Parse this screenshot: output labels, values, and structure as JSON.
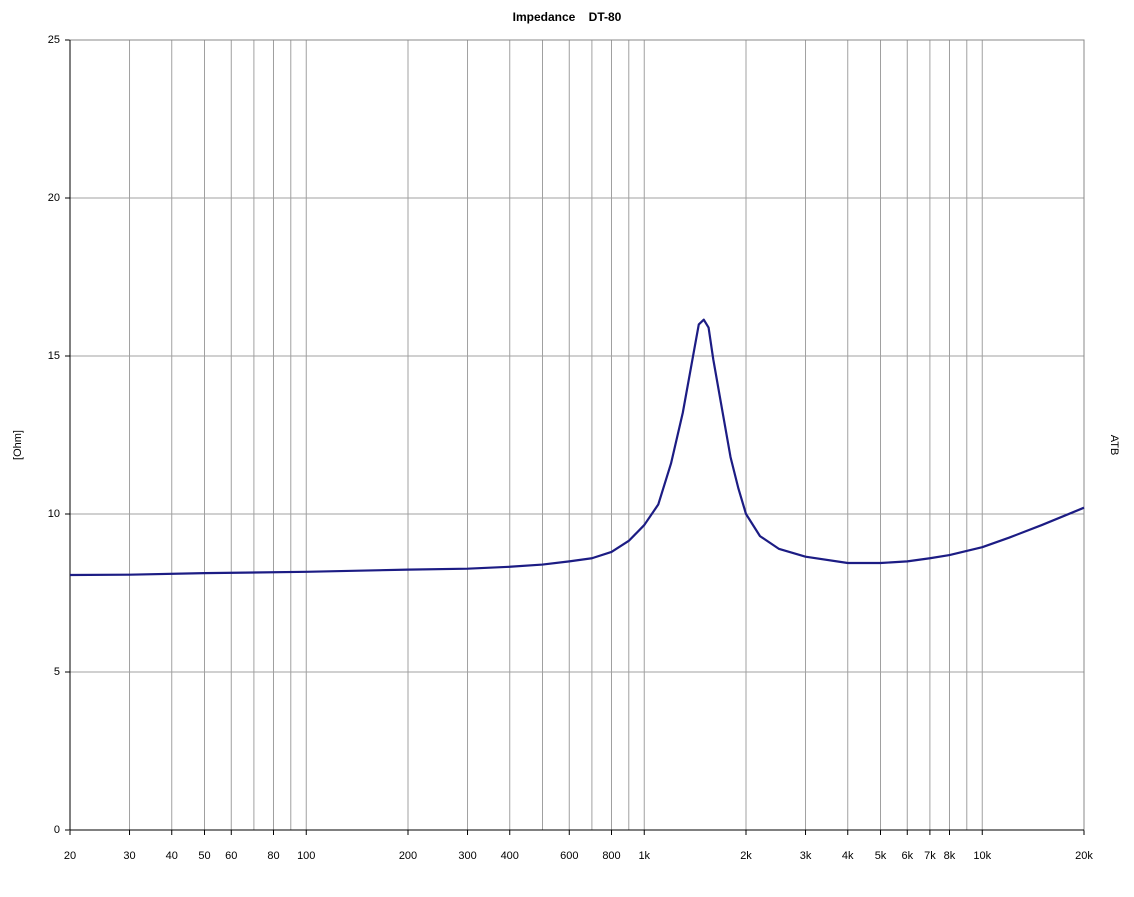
{
  "chart_data": {
    "type": "line",
    "title": "Impedance    DT-80",
    "y_label": "[Ohm]",
    "side_label": "ATB",
    "log_x": true,
    "grid": true,
    "x": [
      20,
      30,
      50,
      100,
      200,
      300,
      400,
      500,
      600,
      700,
      800,
      900,
      1000,
      1100,
      1200,
      1300,
      1400,
      1450,
      1500,
      1550,
      1600,
      1700,
      1800,
      1900,
      2000,
      2200,
      2500,
      3000,
      4000,
      5000,
      6000,
      7000,
      8000,
      10000,
      12000,
      15000,
      20000
    ],
    "series": [
      {
        "name": "Impedance",
        "color": "#1c1c84",
        "values": [
          8.07,
          8.08,
          8.13,
          8.17,
          8.24,
          8.27,
          8.33,
          8.4,
          8.5,
          8.6,
          8.8,
          9.15,
          9.65,
          10.3,
          11.6,
          13.2,
          15.1,
          16.0,
          16.15,
          15.9,
          14.9,
          13.3,
          11.8,
          10.8,
          10.0,
          9.3,
          8.9,
          8.65,
          8.45,
          8.45,
          8.5,
          8.6,
          8.7,
          8.95,
          9.25,
          9.65,
          10.2
        ]
      }
    ],
    "xlim": [
      20,
      20000
    ],
    "xticks": [
      20,
      30,
      40,
      50,
      60,
      80,
      100,
      200,
      300,
      400,
      600,
      800,
      {
        "value": 1000,
        "label": "1k"
      },
      {
        "value": 2000,
        "label": "2k"
      },
      {
        "value": 3000,
        "label": "3k"
      },
      {
        "value": 4000,
        "label": "4k"
      },
      {
        "value": 5000,
        "label": "5k"
      },
      {
        "value": 6000,
        "label": "6k"
      },
      {
        "value": 7000,
        "label": "7k"
      },
      {
        "value": 8000,
        "label": "8k"
      },
      {
        "value": 10000,
        "label": "10k"
      },
      {
        "value": 20000,
        "label": "20k"
      }
    ],
    "xminor": [
      70,
      90,
      500,
      700,
      900,
      9000
    ],
    "ylim": [
      0,
      25
    ],
    "yticks": [
      0,
      5,
      10,
      15,
      20,
      25
    ]
  }
}
